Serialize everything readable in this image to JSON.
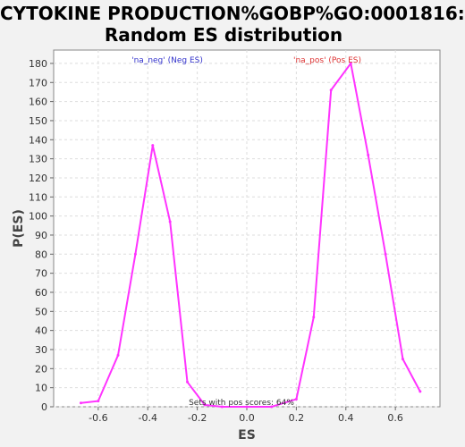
{
  "chart_data": {
    "type": "line",
    "title_line1": "CYTOKINE PRODUCTION%GOBP%GO:0001816:",
    "title_line2": "Random ES distribution",
    "xlabel": "ES",
    "ylabel": "P(ES)",
    "xlim": [
      -0.78,
      0.78
    ],
    "ylim": [
      0,
      187
    ],
    "x_ticks": [
      -0.6,
      -0.4,
      -0.2,
      0.0,
      0.2,
      0.4,
      0.6
    ],
    "x_tick_labels": [
      "-0.6",
      "-0.4",
      "-0.2",
      "0.0",
      "0.2",
      "0.4",
      "0.6"
    ],
    "y_ticks": [
      0,
      10,
      20,
      30,
      40,
      50,
      60,
      70,
      80,
      90,
      100,
      110,
      120,
      130,
      140,
      150,
      160,
      170,
      180
    ],
    "grid": true,
    "series": [
      {
        "color": "#ff33ff",
        "x": [
          -0.67,
          -0.6,
          -0.52,
          -0.45,
          -0.38,
          -0.31,
          -0.24,
          -0.17,
          -0.1,
          0.0,
          0.1,
          0.2,
          0.27,
          0.34,
          0.42,
          0.49,
          0.56,
          0.63,
          0.7
        ],
        "y": [
          2,
          3,
          27,
          80,
          137,
          97,
          13,
          1,
          0,
          0,
          0,
          4,
          47,
          166,
          180,
          132,
          80,
          25,
          8
        ]
      }
    ],
    "annotations": [
      {
        "text": "'na_neg' (Neg ES)",
        "color": "#3333cc"
      },
      {
        "text": "'na_pos' (Pos ES)",
        "color": "#dd3333"
      },
      {
        "text": "Sets with pos scores: 64%",
        "color": "#333333"
      }
    ]
  }
}
